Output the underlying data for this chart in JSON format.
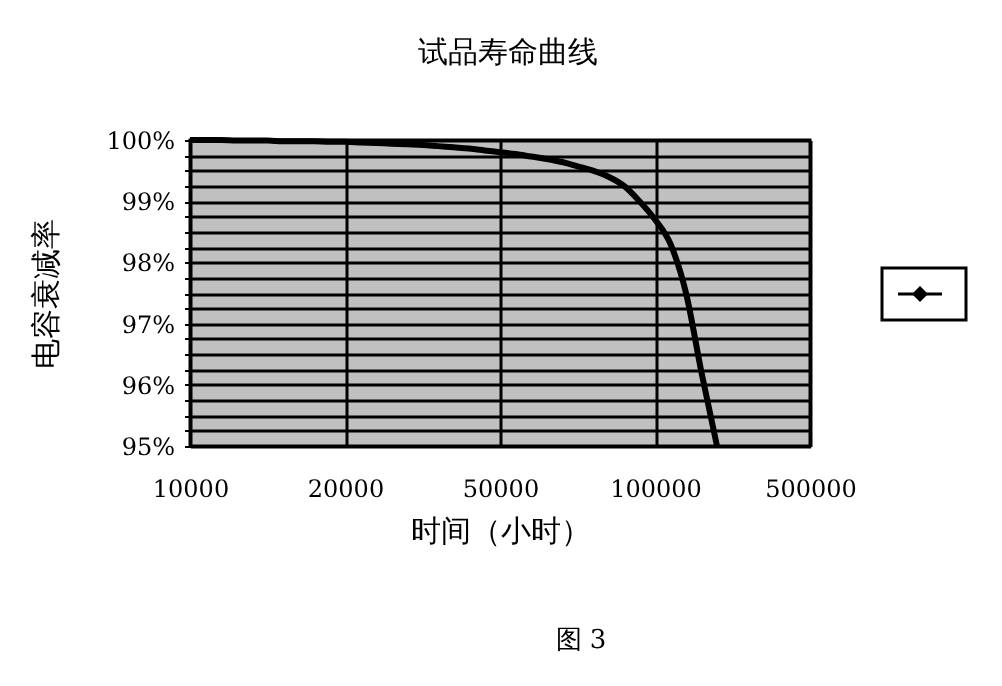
{
  "chart_data": {
    "type": "line",
    "title": "试品寿命曲线",
    "xlabel": "时间（小时）",
    "ylabel": "电容衰减率",
    "annotations": [
      "图 3"
    ],
    "categories": [
      "10000",
      null,
      null,
      null,
      null,
      null,
      null,
      null,
      null,
      null,
      "20000",
      null,
      null,
      null,
      null,
      null,
      null,
      null,
      null,
      null,
      "50000",
      null,
      null,
      null,
      null,
      null,
      null,
      null,
      null,
      null,
      "100000",
      null,
      null,
      null,
      null,
      null,
      null,
      null,
      null,
      null,
      "500000"
    ],
    "series": [
      {
        "color": "#000000",
        "values": [
          100,
          100,
          100,
          99.99,
          99.99,
          99.99,
          99.98,
          99.98,
          99.98,
          99.97,
          99.97,
          99.96,
          99.95,
          99.94,
          99.93,
          99.92,
          99.9,
          99.88,
          99.86,
          99.83,
          99.8,
          99.77,
          99.73,
          99.69,
          99.64,
          99.57,
          99.5,
          99.4,
          99.25,
          99.0,
          98.7,
          98.3,
          97.5,
          96.2,
          95,
          null,
          null,
          null,
          null,
          null,
          null
        ]
      }
    ],
    "ylim": [
      95,
      100
    ],
    "yticks": [
      {
        "value": 95,
        "label": "95%"
      },
      {
        "value": 95.25,
        "label": null
      },
      {
        "value": 95.5,
        "label": null
      },
      {
        "value": 95.75,
        "label": null
      },
      {
        "value": 96,
        "label": "96%"
      },
      {
        "value": 96.25,
        "label": null
      },
      {
        "value": 96.5,
        "label": null
      },
      {
        "value": 96.75,
        "label": null
      },
      {
        "value": 97,
        "label": "97%"
      },
      {
        "value": 97.25,
        "label": null
      },
      {
        "value": 97.5,
        "label": null
      },
      {
        "value": 97.75,
        "label": null
      },
      {
        "value": 98,
        "label": "98%"
      },
      {
        "value": 98.25,
        "label": null
      },
      {
        "value": 98.5,
        "label": null
      },
      {
        "value": 98.75,
        "label": null
      },
      {
        "value": 99,
        "label": "99%"
      },
      {
        "value": 99.25,
        "label": null
      },
      {
        "value": 99.5,
        "label": null
      },
      {
        "value": 99.75,
        "label": null
      },
      {
        "value": 100,
        "label": "100%"
      }
    ],
    "grid": true
  }
}
